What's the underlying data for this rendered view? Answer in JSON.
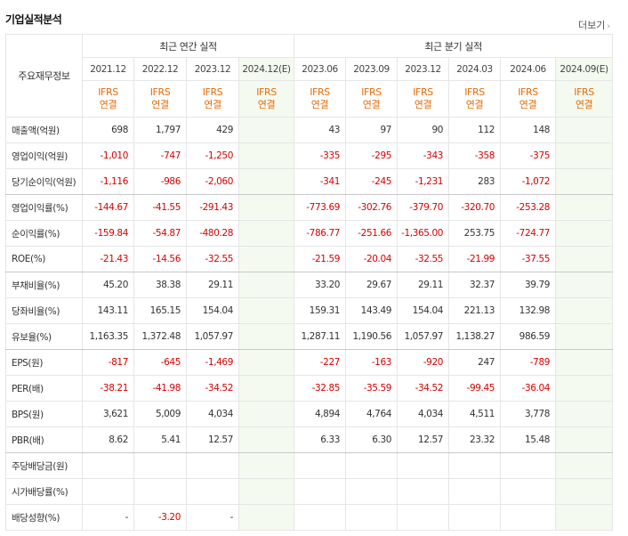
{
  "header": {
    "title": "기업실적분석",
    "more": "더보기"
  },
  "table": {
    "corner": "주요재무정보",
    "groups": [
      {
        "label": "최근 연간 실적",
        "columns": [
          {
            "period": "2021.12",
            "standard": "IFRS",
            "scope": "연결"
          },
          {
            "period": "2022.12",
            "standard": "IFRS",
            "scope": "연결"
          },
          {
            "period": "2023.12",
            "standard": "IFRS",
            "scope": "연결"
          },
          {
            "period": "2024.12(E)",
            "standard": "IFRS",
            "scope": "연결"
          }
        ]
      },
      {
        "label": "최근 분기 실적",
        "columns": [
          {
            "period": "2023.06",
            "standard": "IFRS",
            "scope": "연결"
          },
          {
            "period": "2023.09",
            "standard": "IFRS",
            "scope": "연결"
          },
          {
            "period": "2023.12",
            "standard": "IFRS",
            "scope": "연결"
          },
          {
            "period": "2024.03",
            "standard": "IFRS",
            "scope": "연결"
          },
          {
            "period": "2024.06",
            "standard": "IFRS",
            "scope": "연결"
          },
          {
            "period": "2024.09(E)",
            "standard": "IFRS",
            "scope": "연결"
          }
        ]
      }
    ],
    "rows": [
      {
        "label": "매출액(억원)",
        "cells": [
          "698",
          "1,797",
          "429",
          null,
          "43",
          "97",
          "90",
          "112",
          "148",
          null
        ]
      },
      {
        "label": "영업이익(억원)",
        "cells": [
          "-1,010",
          "-747",
          "-1,250",
          null,
          "-335",
          "-295",
          "-343",
          "-358",
          "-375",
          null
        ]
      },
      {
        "label": "당기순이익(억원)",
        "cells": [
          "-1,116",
          "-986",
          "-2,060",
          null,
          "-341",
          "-245",
          "-1,231",
          "283",
          "-1,072",
          null
        ]
      },
      {
        "label": "영업이익률(%)",
        "cells": [
          "-144.67",
          "-41.55",
          "-291.43",
          null,
          "-773.69",
          "-302.76",
          "-379.70",
          "-320.70",
          "-253.28",
          null
        ]
      },
      {
        "label": "순이익률(%)",
        "cells": [
          "-159.84",
          "-54.87",
          "-480.28",
          null,
          "-786.77",
          "-251.66",
          "-1,365.00",
          "253.75",
          "-724.77",
          null
        ]
      },
      {
        "label": "ROE(%)",
        "cells": [
          "-21.43",
          "-14.56",
          "-32.55",
          null,
          "-21.59",
          "-20.04",
          "-32.55",
          "-21.99",
          "-37.55",
          null
        ]
      },
      {
        "label": "부채비율(%)",
        "cells": [
          "45.20",
          "38.38",
          "29.11",
          null,
          "33.20",
          "29.67",
          "29.11",
          "32.37",
          "39.79",
          null
        ]
      },
      {
        "label": "당좌비율(%)",
        "cells": [
          "143.11",
          "165.15",
          "154.04",
          null,
          "159.31",
          "143.49",
          "154.04",
          "221.13",
          "132.98",
          null
        ]
      },
      {
        "label": "유보율(%)",
        "cells": [
          "1,163.35",
          "1,372.48",
          "1,057.97",
          null,
          "1,287.11",
          "1,190.56",
          "1,057.97",
          "1,138.27",
          "986.59",
          null
        ]
      },
      {
        "label": "EPS(원)",
        "cells": [
          "-817",
          "-645",
          "-1,469",
          null,
          "-227",
          "-163",
          "-920",
          "247",
          "-789",
          null
        ]
      },
      {
        "label": "PER(배)",
        "cells": [
          "-38.21",
          "-41.98",
          "-34.52",
          null,
          "-32.85",
          "-35.59",
          "-34.52",
          "-99.45",
          "-36.04",
          null
        ]
      },
      {
        "label": "BPS(원)",
        "cells": [
          "3,621",
          "5,009",
          "4,034",
          null,
          "4,894",
          "4,764",
          "4,034",
          "4,511",
          "3,778",
          null
        ]
      },
      {
        "label": "PBR(배)",
        "cells": [
          "8.62",
          "5.41",
          "12.57",
          null,
          "6.33",
          "6.30",
          "12.57",
          "23.32",
          "15.48",
          null
        ]
      },
      {
        "label": "주당배당금(원)",
        "cells": [
          null,
          null,
          null,
          null,
          null,
          null,
          null,
          null,
          null,
          null
        ]
      },
      {
        "label": "시가배당률(%)",
        "cells": [
          null,
          null,
          null,
          null,
          null,
          null,
          null,
          null,
          null,
          null
        ]
      },
      {
        "label": "배당성향(%)",
        "cells": [
          "-",
          "-3.20",
          "-",
          null,
          null,
          null,
          null,
          null,
          null,
          null
        ]
      }
    ]
  }
}
